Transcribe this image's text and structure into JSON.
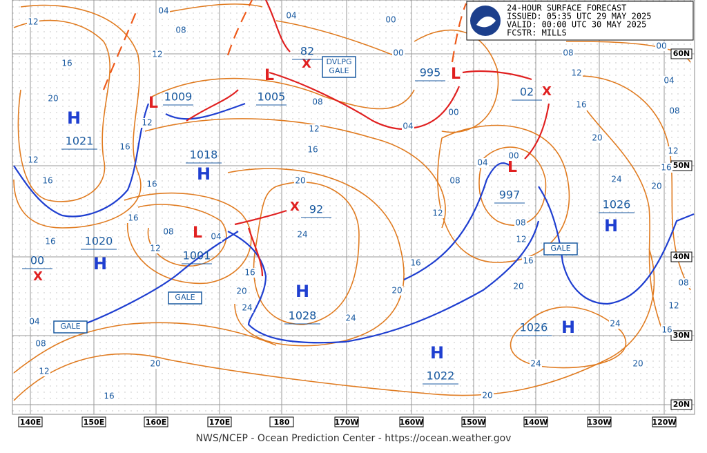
{
  "header": {
    "lines": [
      "24-HOUR SURFACE FORECAST",
      "ISSUED: 05:35 UTC 29 MAY 2025",
      "VALID:  00:00 UTC 30 MAY 2025",
      "FCSTR:  MILLS"
    ]
  },
  "longitudes": [
    "140E",
    "150E",
    "160E",
    "170E",
    "180",
    "170W",
    "160W",
    "150W",
    "140W",
    "130W",
    "120W"
  ],
  "latitudes": [
    "60N",
    "50N",
    "40N",
    "30N",
    "20N"
  ],
  "highs": [
    {
      "symbol": "H",
      "pressure": "1021"
    },
    {
      "symbol": "H",
      "pressure": "1018"
    },
    {
      "symbol": "H",
      "pressure": "1020"
    },
    {
      "symbol": "H",
      "pressure": "1028"
    },
    {
      "symbol": "H",
      "pressure": "1022"
    },
    {
      "symbol": "H",
      "pressure": "1026"
    },
    {
      "symbol": "H",
      "pressure": "1026"
    }
  ],
  "lows": [
    {
      "symbol": "L",
      "pressure": "1009"
    },
    {
      "symbol": "L",
      "pressure": "1005"
    },
    {
      "symbol": "X",
      "pressure": "82"
    },
    {
      "symbol": "L",
      "pressure": "995"
    },
    {
      "symbol": "X",
      "pressure": "02"
    },
    {
      "symbol": "L",
      "pressure": "997"
    },
    {
      "symbol": "X",
      "pressure": "92"
    },
    {
      "symbol": "L",
      "pressure": "1001"
    },
    {
      "symbol": "X",
      "pressure": "00"
    }
  ],
  "isobar_labels": [
    "04",
    "12",
    "08",
    "12",
    "16",
    "20",
    "12",
    "16",
    "12",
    "16",
    "16",
    "16",
    "08",
    "12",
    "16",
    "04",
    "08",
    "12",
    "16",
    "20",
    "24",
    "16",
    "20",
    "24",
    "24",
    "20",
    "12",
    "08",
    "04",
    "00",
    "08",
    "12",
    "16",
    "20",
    "16",
    "04",
    "00",
    "00",
    "00",
    "04",
    "08",
    "12",
    "16",
    "20",
    "24",
    "20",
    "16",
    "12",
    "08",
    "04",
    "00",
    "08",
    "12",
    "16",
    "20",
    "24",
    "24",
    "20",
    "20",
    "16",
    "12",
    "08",
    "04"
  ],
  "warnings": [
    {
      "lines": [
        "DVLPG",
        "GALE"
      ]
    },
    {
      "lines": [
        "GALE"
      ]
    },
    {
      "lines": [
        "GALE"
      ]
    },
    {
      "lines": [
        "GALE"
      ]
    }
  ],
  "footer": "NWS/NCEP - Ocean Prediction Center - https://ocean.weather.gov"
}
